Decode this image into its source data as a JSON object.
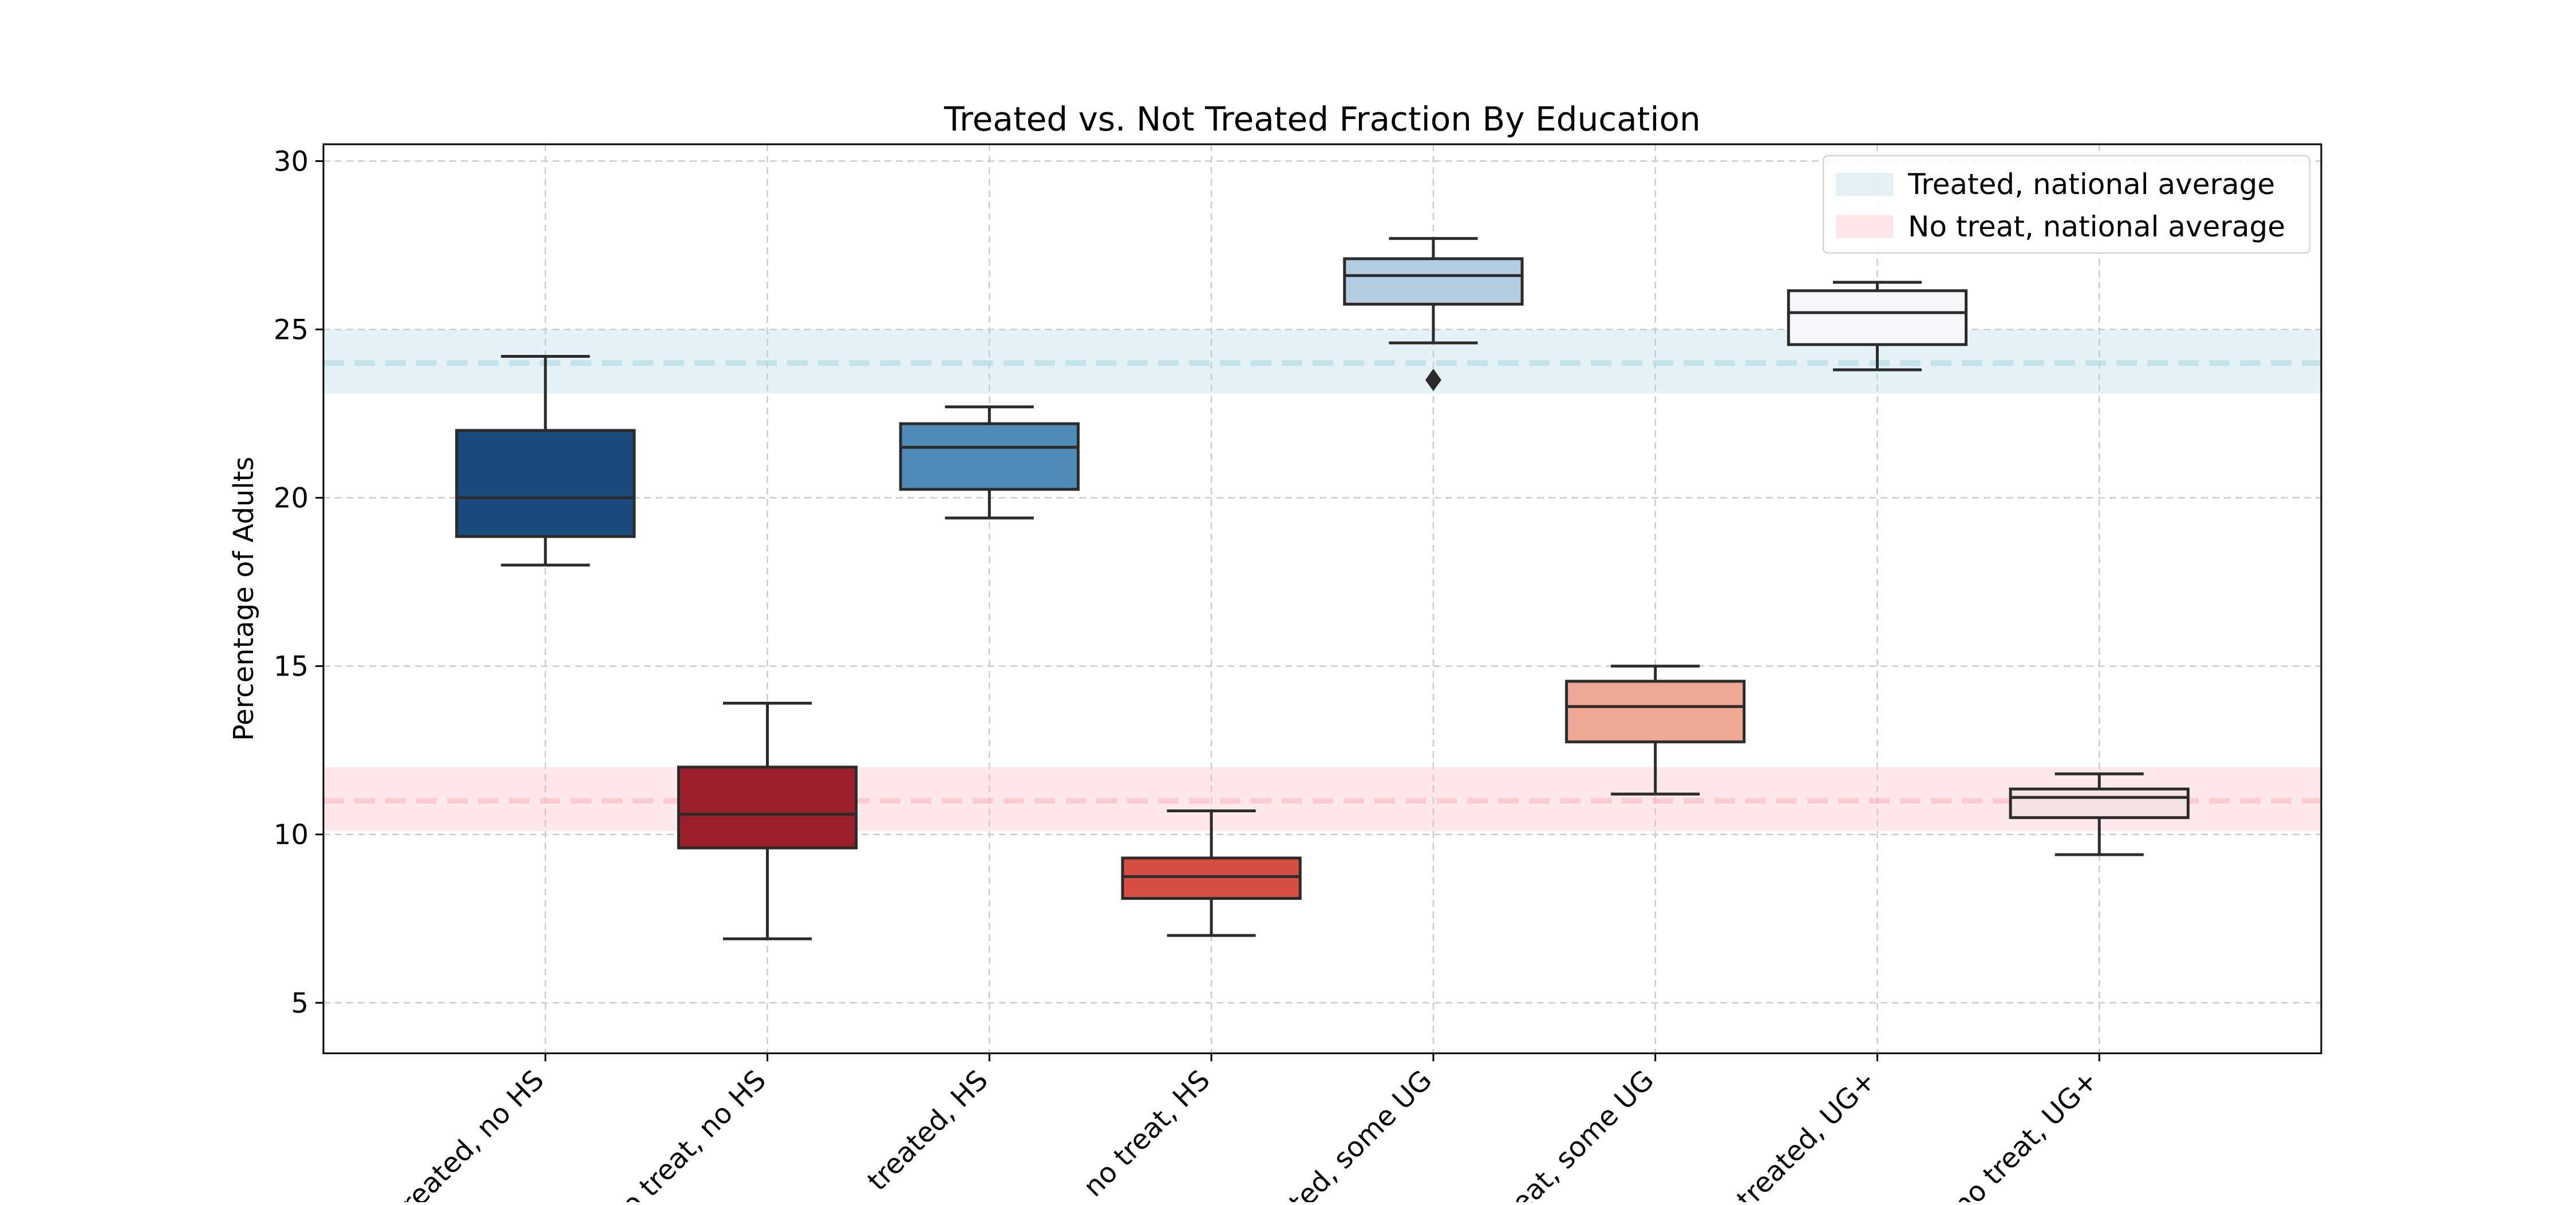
{
  "chart_data": {
    "type": "box",
    "title": "Treated vs. Not Treated Fraction By Education",
    "xlabel": "",
    "ylabel": "Percentage of Adults",
    "ylim": [
      3.5,
      30.5
    ],
    "yticks": [
      5,
      10,
      15,
      20,
      25,
      30
    ],
    "grid": true,
    "legend_position": "top-right",
    "categories": [
      "treated, no HS",
      "no treat, no HS",
      "treated, HS",
      "no treat, HS",
      "treated, some UG",
      "no treat, some UG",
      "treated, UG+",
      "no treat, UG+"
    ],
    "boxes": [
      {
        "whisker_low": 18.0,
        "q1": 18.85,
        "median": 20.0,
        "q3": 22.0,
        "whisker_high": 24.2,
        "outliers": [],
        "color": "#1b4a7f"
      },
      {
        "whisker_low": 6.9,
        "q1": 9.6,
        "median": 10.6,
        "q3": 12.0,
        "whisker_high": 13.9,
        "outliers": [],
        "color": "#9b1f2a"
      },
      {
        "whisker_low": 19.4,
        "q1": 20.25,
        "median": 21.5,
        "q3": 22.2,
        "whisker_high": 22.7,
        "outliers": [],
        "color": "#4f8bb7"
      },
      {
        "whisker_low": 7.0,
        "q1": 8.1,
        "median": 8.75,
        "q3": 9.3,
        "whisker_high": 10.7,
        "outliers": [],
        "color": "#d64e42"
      },
      {
        "whisker_low": 24.6,
        "q1": 25.75,
        "median": 26.6,
        "q3": 27.1,
        "whisker_high": 27.7,
        "outliers": [
          23.5
        ],
        "color": "#b5cde0"
      },
      {
        "whisker_low": 11.2,
        "q1": 12.75,
        "median": 13.8,
        "q3": 14.55,
        "whisker_high": 15.0,
        "outliers": [],
        "color": "#eda993"
      },
      {
        "whisker_low": 23.8,
        "q1": 24.55,
        "median": 25.5,
        "q3": 26.15,
        "whisker_high": 26.4,
        "outliers": [],
        "color": "#f5f7fa"
      },
      {
        "whisker_low": 9.4,
        "q1": 10.5,
        "median": 11.1,
        "q3": 11.35,
        "whisker_high": 11.8,
        "outliers": [],
        "color": "#f4e2e2"
      }
    ],
    "reference_bands": [
      {
        "name": "Treated, national average",
        "mean": 24.0,
        "low": 23.1,
        "high": 25.0,
        "color": "#add8e6"
      },
      {
        "name": "No treat, national average",
        "mean": 11.0,
        "low": 10.1,
        "high": 12.0,
        "color": "#ffb6c1"
      }
    ]
  }
}
